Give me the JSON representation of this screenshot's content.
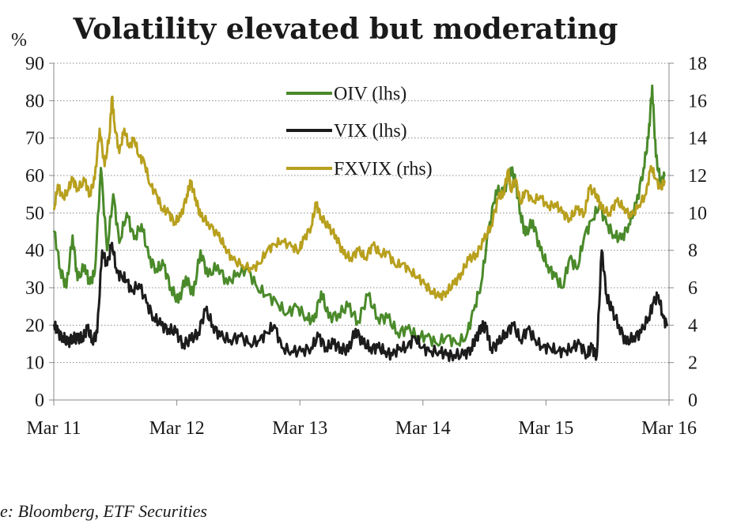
{
  "chart_data": {
    "type": "line",
    "title": "Volatility elevated but moderating",
    "ylabel_left": "%",
    "left_axis": {
      "ylim": [
        0,
        90
      ],
      "ticks": [
        "0",
        "10",
        "20",
        "30",
        "40",
        "50",
        "60",
        "70",
        "80",
        "90"
      ]
    },
    "right_axis": {
      "ylim": [
        0,
        18
      ],
      "ticks": [
        "0",
        "2",
        "4",
        "6",
        "8",
        "10",
        "12",
        "14",
        "16",
        "18"
      ]
    },
    "x_range": [
      2011.167,
      2016.167
    ],
    "x_ticks": [
      {
        "label": "Mar 11",
        "value": 2011.167
      },
      {
        "label": "Mar 12",
        "value": 2012.167
      },
      {
        "label": "Mar 13",
        "value": 2013.167
      },
      {
        "label": "Mar 14",
        "value": 2014.167
      },
      {
        "label": "Mar 15",
        "value": 2015.167
      },
      {
        "label": "Mar 16",
        "value": 2016.167
      }
    ],
    "legend": {
      "position": "top-center"
    },
    "grid": "horizontal-dotted",
    "series": [
      {
        "name": "OIV (lhs)",
        "axis": "left",
        "color": "#4a8a2a",
        "points": [
          [
            2011.17,
            45
          ],
          [
            2011.22,
            35
          ],
          [
            2011.27,
            30
          ],
          [
            2011.32,
            44
          ],
          [
            2011.36,
            32
          ],
          [
            2011.42,
            36
          ],
          [
            2011.46,
            31
          ],
          [
            2011.5,
            34
          ],
          [
            2011.55,
            62
          ],
          [
            2011.6,
            40
          ],
          [
            2011.65,
            55
          ],
          [
            2011.7,
            42
          ],
          [
            2011.76,
            50
          ],
          [
            2011.82,
            43
          ],
          [
            2011.88,
            47
          ],
          [
            2011.94,
            38
          ],
          [
            2012.0,
            35
          ],
          [
            2012.06,
            36
          ],
          [
            2012.12,
            30
          ],
          [
            2012.18,
            26
          ],
          [
            2012.24,
            33
          ],
          [
            2012.3,
            28
          ],
          [
            2012.36,
            40
          ],
          [
            2012.42,
            33
          ],
          [
            2012.5,
            36
          ],
          [
            2012.58,
            31
          ],
          [
            2012.66,
            34
          ],
          [
            2012.74,
            35
          ],
          [
            2012.82,
            30
          ],
          [
            2012.9,
            28
          ],
          [
            2012.98,
            26
          ],
          [
            2013.06,
            23
          ],
          [
            2013.14,
            25
          ],
          [
            2013.22,
            22
          ],
          [
            2013.28,
            21
          ],
          [
            2013.34,
            29
          ],
          [
            2013.4,
            22
          ],
          [
            2013.48,
            23
          ],
          [
            2013.56,
            25
          ],
          [
            2013.64,
            21
          ],
          [
            2013.72,
            28
          ],
          [
            2013.8,
            22
          ],
          [
            2013.88,
            22
          ],
          [
            2013.96,
            18
          ],
          [
            2014.04,
            19
          ],
          [
            2014.12,
            17
          ],
          [
            2014.2,
            17
          ],
          [
            2014.28,
            15
          ],
          [
            2014.36,
            17
          ],
          [
            2014.44,
            15
          ],
          [
            2014.52,
            17
          ],
          [
            2014.58,
            24
          ],
          [
            2014.64,
            31
          ],
          [
            2014.7,
            45
          ],
          [
            2014.76,
            56
          ],
          [
            2014.82,
            55
          ],
          [
            2014.88,
            62
          ],
          [
            2014.92,
            58
          ],
          [
            2014.96,
            50
          ],
          [
            2015.0,
            44
          ],
          [
            2015.06,
            48
          ],
          [
            2015.12,
            40
          ],
          [
            2015.18,
            36
          ],
          [
            2015.24,
            33
          ],
          [
            2015.3,
            30
          ],
          [
            2015.36,
            38
          ],
          [
            2015.42,
            35
          ],
          [
            2015.48,
            44
          ],
          [
            2015.54,
            48
          ],
          [
            2015.6,
            52
          ],
          [
            2015.66,
            47
          ],
          [
            2015.72,
            44
          ],
          [
            2015.78,
            43
          ],
          [
            2015.84,
            47
          ],
          [
            2015.9,
            52
          ],
          [
            2015.96,
            62
          ],
          [
            2016.0,
            70
          ],
          [
            2016.03,
            84
          ],
          [
            2016.06,
            65
          ],
          [
            2016.1,
            58
          ],
          [
            2016.13,
            60
          ]
        ]
      },
      {
        "name": "VIX (lhs)",
        "axis": "left",
        "color": "#1c1c1c",
        "points": [
          [
            2011.17,
            20
          ],
          [
            2011.2,
            18
          ],
          [
            2011.24,
            17
          ],
          [
            2011.28,
            15
          ],
          [
            2011.32,
            17
          ],
          [
            2011.36,
            16
          ],
          [
            2011.4,
            17
          ],
          [
            2011.44,
            19
          ],
          [
            2011.48,
            16
          ],
          [
            2011.52,
            18
          ],
          [
            2011.56,
            40
          ],
          [
            2011.6,
            36
          ],
          [
            2011.64,
            42
          ],
          [
            2011.68,
            34
          ],
          [
            2011.72,
            33
          ],
          [
            2011.76,
            32
          ],
          [
            2011.8,
            29
          ],
          [
            2011.86,
            31
          ],
          [
            2011.92,
            26
          ],
          [
            2011.98,
            22
          ],
          [
            2012.04,
            20
          ],
          [
            2012.1,
            19
          ],
          [
            2012.16,
            18
          ],
          [
            2012.22,
            15
          ],
          [
            2012.28,
            16
          ],
          [
            2012.34,
            18
          ],
          [
            2012.4,
            24
          ],
          [
            2012.46,
            20
          ],
          [
            2012.52,
            17
          ],
          [
            2012.6,
            16
          ],
          [
            2012.68,
            17
          ],
          [
            2012.76,
            15
          ],
          [
            2012.84,
            16
          ],
          [
            2012.9,
            18
          ],
          [
            2012.96,
            20
          ],
          [
            2013.02,
            14
          ],
          [
            2013.1,
            13
          ],
          [
            2013.18,
            13
          ],
          [
            2013.26,
            14
          ],
          [
            2013.32,
            17
          ],
          [
            2013.38,
            14
          ],
          [
            2013.44,
            15
          ],
          [
            2013.5,
            14
          ],
          [
            2013.56,
            13
          ],
          [
            2013.62,
            19
          ],
          [
            2013.68,
            15
          ],
          [
            2013.74,
            14
          ],
          [
            2013.8,
            14
          ],
          [
            2013.86,
            13
          ],
          [
            2013.92,
            12
          ],
          [
            2013.98,
            14
          ],
          [
            2014.04,
            14
          ],
          [
            2014.1,
            17
          ],
          [
            2014.16,
            14
          ],
          [
            2014.22,
            13
          ],
          [
            2014.3,
            13
          ],
          [
            2014.36,
            12
          ],
          [
            2014.42,
            12
          ],
          [
            2014.5,
            12
          ],
          [
            2014.56,
            14
          ],
          [
            2014.6,
            16
          ],
          [
            2014.64,
            20
          ],
          [
            2014.68,
            19
          ],
          [
            2014.72,
            14
          ],
          [
            2014.78,
            15
          ],
          [
            2014.84,
            18
          ],
          [
            2014.9,
            20
          ],
          [
            2014.96,
            16
          ],
          [
            2015.02,
            19
          ],
          [
            2015.08,
            16
          ],
          [
            2015.14,
            14
          ],
          [
            2015.2,
            14
          ],
          [
            2015.26,
            13
          ],
          [
            2015.32,
            13
          ],
          [
            2015.38,
            14
          ],
          [
            2015.44,
            15
          ],
          [
            2015.5,
            12
          ],
          [
            2015.54,
            14
          ],
          [
            2015.58,
            12
          ],
          [
            2015.62,
            40
          ],
          [
            2015.66,
            28
          ],
          [
            2015.7,
            24
          ],
          [
            2015.76,
            20
          ],
          [
            2015.82,
            15
          ],
          [
            2015.88,
            17
          ],
          [
            2015.94,
            18
          ],
          [
            2016.0,
            22
          ],
          [
            2016.04,
            26
          ],
          [
            2016.08,
            28
          ],
          [
            2016.12,
            22
          ],
          [
            2016.15,
            20
          ]
        ]
      },
      {
        "name": "FXVIX (rhs)",
        "axis": "right",
        "color": "#b8a01e",
        "points": [
          [
            2011.17,
            10.2
          ],
          [
            2011.2,
            11.5
          ],
          [
            2011.24,
            10.8
          ],
          [
            2011.28,
            11.2
          ],
          [
            2011.32,
            11.8
          ],
          [
            2011.36,
            11.3
          ],
          [
            2011.42,
            11.7
          ],
          [
            2011.46,
            11.0
          ],
          [
            2011.5,
            11.8
          ],
          [
            2011.54,
            14.5
          ],
          [
            2011.58,
            12.5
          ],
          [
            2011.62,
            14.2
          ],
          [
            2011.64,
            16.2
          ],
          [
            2011.66,
            14.8
          ],
          [
            2011.7,
            13.2
          ],
          [
            2011.74,
            14.5
          ],
          [
            2011.78,
            13.5
          ],
          [
            2011.82,
            14.0
          ],
          [
            2011.86,
            13.0
          ],
          [
            2011.9,
            12.8
          ],
          [
            2011.95,
            11.5
          ],
          [
            2012.0,
            11.0
          ],
          [
            2012.05,
            10.2
          ],
          [
            2012.1,
            10.0
          ],
          [
            2012.15,
            9.5
          ],
          [
            2012.2,
            9.8
          ],
          [
            2012.25,
            11.0
          ],
          [
            2012.28,
            11.6
          ],
          [
            2012.32,
            10.8
          ],
          [
            2012.36,
            9.8
          ],
          [
            2012.42,
            9.5
          ],
          [
            2012.5,
            8.8
          ],
          [
            2012.56,
            8.2
          ],
          [
            2012.62,
            7.5
          ],
          [
            2012.7,
            7.2
          ],
          [
            2012.78,
            7.0
          ],
          [
            2012.84,
            7.3
          ],
          [
            2012.9,
            8.0
          ],
          [
            2012.96,
            8.3
          ],
          [
            2013.02,
            8.5
          ],
          [
            2013.1,
            8.2
          ],
          [
            2013.16,
            8.0
          ],
          [
            2013.2,
            8.6
          ],
          [
            2013.26,
            9.3
          ],
          [
            2013.3,
            10.5
          ],
          [
            2013.34,
            9.8
          ],
          [
            2013.4,
            9.2
          ],
          [
            2013.46,
            8.8
          ],
          [
            2013.52,
            7.8
          ],
          [
            2013.58,
            7.6
          ],
          [
            2013.64,
            8.0
          ],
          [
            2013.7,
            7.6
          ],
          [
            2013.76,
            8.3
          ],
          [
            2013.82,
            7.8
          ],
          [
            2013.88,
            7.9
          ],
          [
            2013.94,
            7.2
          ],
          [
            2014.0,
            7.3
          ],
          [
            2014.06,
            6.9
          ],
          [
            2014.12,
            6.6
          ],
          [
            2014.18,
            6.2
          ],
          [
            2014.24,
            5.8
          ],
          [
            2014.3,
            5.5
          ],
          [
            2014.36,
            5.8
          ],
          [
            2014.42,
            6.2
          ],
          [
            2014.48,
            6.8
          ],
          [
            2014.54,
            7.5
          ],
          [
            2014.6,
            7.8
          ],
          [
            2014.66,
            8.5
          ],
          [
            2014.72,
            9.3
          ],
          [
            2014.78,
            10.8
          ],
          [
            2014.82,
            11.0
          ],
          [
            2014.86,
            12.3
          ],
          [
            2014.88,
            11.2
          ],
          [
            2014.92,
            11.8
          ],
          [
            2014.96,
            10.5
          ],
          [
            2015.0,
            11.2
          ],
          [
            2015.06,
            10.6
          ],
          [
            2015.12,
            10.9
          ],
          [
            2015.18,
            10.3
          ],
          [
            2015.24,
            10.5
          ],
          [
            2015.3,
            10.0
          ],
          [
            2015.36,
            9.7
          ],
          [
            2015.42,
            10.2
          ],
          [
            2015.48,
            10.0
          ],
          [
            2015.52,
            11.3
          ],
          [
            2015.58,
            11.0
          ],
          [
            2015.62,
            10.2
          ],
          [
            2015.68,
            10.0
          ],
          [
            2015.74,
            10.6
          ],
          [
            2015.8,
            10.3
          ],
          [
            2015.86,
            9.8
          ],
          [
            2015.92,
            10.4
          ],
          [
            2015.98,
            11.0
          ],
          [
            2016.02,
            12.5
          ],
          [
            2016.06,
            11.8
          ],
          [
            2016.1,
            11.3
          ],
          [
            2016.13,
            11.7
          ]
        ]
      }
    ],
    "source": "e: Bloomberg, ETF Securities"
  }
}
